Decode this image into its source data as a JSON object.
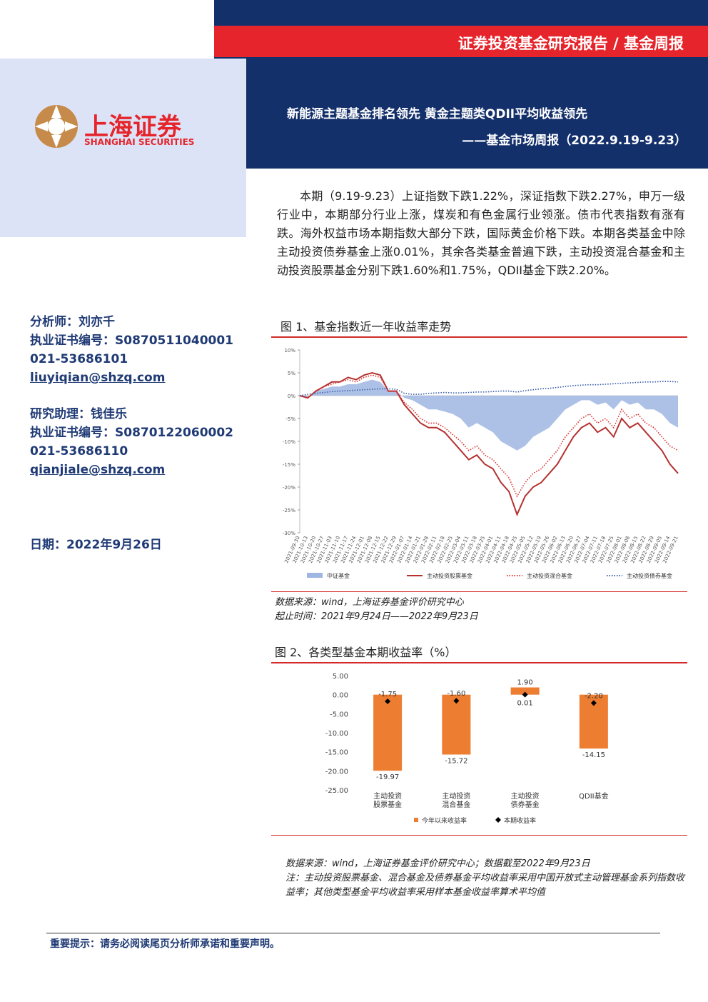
{
  "header": {
    "report_type": "证券投资基金研究报告 / 基金周报",
    "title": "新能源主题基金排名领先 黄金主题类QDII平均收益领先",
    "subtitle": "——基金市场周报（2022.9.19-9.23）"
  },
  "logo": {
    "name": "上海证券",
    "english": "SHANGHAI SECURITIES"
  },
  "analysts": [
    {
      "lines": [
        "分析师：刘亦千",
        "执业证书编号：S0870511040001",
        "021-53686101",
        "liuyiqian@shzq.com"
      ]
    },
    {
      "lines": [
        "研究助理：钱佳乐",
        "执业证书编号：S0870122060002",
        "021-53686110",
        "qianjiale@shzq.com"
      ]
    }
  ],
  "date": "日期：2022年9月26日",
  "body": {
    "paragraph": "本期（9.19-9.23）上证指数下跌1.22%，深证指数下跌2.27%，申万一级行业中，本期部分行业上涨，煤炭和有色金属行业领涨。债市代表指数有涨有跌。海外权益市场本期指数大部分下跌，国际黄金价格下跌。本期各类基金中除主动投资债券基金上涨0.01%，其余各类基金普遍下跌，主动投资混合基金和主动投资股票基金分别下跌1.60%和1.75%，QDII基金下跌2.20%。"
  },
  "chart_data": [
    {
      "type": "line",
      "title": "图 1、基金指数近一年收益率走势",
      "x": [
        "2021-09-30",
        "2021-10-13",
        "2021-10-20",
        "2021-10-27",
        "2021-11-03",
        "2021-11-10",
        "2021-11-17",
        "2021-11-24",
        "2021-12-01",
        "2021-12-08",
        "2021-12-15",
        "2021-12-22",
        "2021-12-29",
        "2022-01-07",
        "2022-01-14",
        "2022-01-21",
        "2022-01-28",
        "2022-02-11",
        "2022-02-18",
        "2022-02-25",
        "2022-03-04",
        "2022-03-11",
        "2022-03-18",
        "2022-03-25",
        "2022-04-01",
        "2022-04-11",
        "2022-04-18",
        "2022-04-25",
        "2022-05-05",
        "2022-05-12",
        "2022-05-19",
        "2022-05-26",
        "2022-06-02",
        "2022-06-13",
        "2022-06-20",
        "2022-06-27",
        "2022-07-04",
        "2022-07-11",
        "2022-07-18",
        "2022-07-25",
        "2022-08-01",
        "2022-08-08",
        "2022-08-15",
        "2022-08-22",
        "2022-08-29",
        "2022-09-05",
        "2022-09-14",
        "2022-09-21"
      ],
      "series": [
        {
          "name": "中证基金",
          "style": "area",
          "color": "#9fb6e2",
          "values": [
            0,
            -0.5,
            1,
            1.5,
            2,
            2,
            2.5,
            2.5,
            3,
            3.5,
            3,
            1,
            1,
            -0.5,
            -1,
            -2,
            -3,
            -3,
            -3.5,
            -4,
            -5,
            -7,
            -6,
            -7,
            -8,
            -10,
            -11,
            -12,
            -11,
            -9,
            -8,
            -7,
            -5,
            -3,
            -2,
            -1,
            -1,
            -2,
            -1.5,
            -3,
            -1,
            -2,
            -1.5,
            -3,
            -3,
            -4,
            -6,
            -7
          ]
        },
        {
          "name": "主动投资股票基金",
          "style": "solid",
          "color": "#b3312f",
          "values": [
            0,
            -0.5,
            1,
            2,
            3,
            3,
            4,
            3.5,
            4.5,
            5,
            4.5,
            1,
            1,
            -2,
            -4,
            -6,
            -7,
            -7,
            -8,
            -10,
            -12,
            -14,
            -13,
            -15,
            -16,
            -19,
            -21,
            -26,
            -22,
            -20,
            -19,
            -17,
            -15,
            -12,
            -9,
            -7,
            -6,
            -8,
            -7,
            -9,
            -5,
            -7,
            -6,
            -8,
            -10,
            -12,
            -15,
            -17
          ]
        },
        {
          "name": "主动投资混合基金",
          "style": "dotted",
          "color": "#d9302f",
          "values": [
            0,
            -0.5,
            1,
            2,
            2.5,
            3,
            3.5,
            3,
            4,
            4.5,
            4,
            1,
            1,
            -1.5,
            -3,
            -5,
            -6,
            -6,
            -7,
            -8.5,
            -10,
            -12,
            -11,
            -13,
            -14,
            -16,
            -18,
            -22,
            -19,
            -17,
            -16,
            -14,
            -12,
            -9,
            -7,
            -5,
            -4,
            -6,
            -5,
            -7,
            -3,
            -5,
            -4,
            -6,
            -7,
            -9,
            -11,
            -12
          ]
        },
        {
          "name": "主动投资债券基金",
          "style": "dotted",
          "color": "#3a5ea8",
          "values": [
            0,
            0.3,
            0.5,
            0.7,
            0.9,
            1,
            1.1,
            1.2,
            1.3,
            1.4,
            1.5,
            1.5,
            1.4,
            0.5,
            0.3,
            0.3,
            0.5,
            0.6,
            0.7,
            0.6,
            0.6,
            0.7,
            0.8,
            0.8,
            0.9,
            1.0,
            1.0,
            0.8,
            1.1,
            1.3,
            1.5,
            1.6,
            1.8,
            2,
            2.2,
            2.3,
            2.4,
            2.4,
            2.5,
            2.6,
            2.7,
            2.8,
            2.9,
            3,
            3,
            3.1,
            3.1,
            3
          ]
        }
      ],
      "ylim": [
        -30,
        10
      ],
      "yticks": [
        {
          "value": -30,
          "label": "-30%"
        },
        {
          "value": -25,
          "label": "-25%"
        },
        {
          "value": -20,
          "label": "-20%"
        },
        {
          "value": -15,
          "label": "-15%"
        },
        {
          "value": -10,
          "label": "-10%"
        },
        {
          "value": -5,
          "label": "-5%"
        },
        {
          "value": 0,
          "label": "0%"
        },
        {
          "value": 5,
          "label": "5%"
        },
        {
          "value": 10,
          "label": "10%"
        }
      ],
      "notes": [
        "数据来源：wind，上海证券基金评价研究中心",
        "起止时间：2021年9月24日——2022年9月23日"
      ]
    },
    {
      "type": "bar",
      "title": "图 2、各类型基金本期收益率（%）",
      "categories": [
        [
          "主动投资",
          "股票基金"
        ],
        [
          "主动投资",
          "混合基金"
        ],
        [
          "主动投资",
          "债券基金"
        ],
        [
          "QDII基金"
        ]
      ],
      "series": [
        {
          "name": "今年以来收益率",
          "type": "bar",
          "color": "#ed7d31",
          "values": [
            -19.97,
            -15.72,
            1.9,
            -14.15
          ],
          "value_labels": [
            "-19.97",
            "-15.72",
            "1.90",
            "-14.15"
          ]
        },
        {
          "name": "本期收益率",
          "type": "scatter",
          "marker": "diamond",
          "color": "#000000",
          "values": [
            -1.75,
            -1.6,
            0.01,
            -2.2
          ],
          "value_labels": [
            "-1.75",
            "-1.60",
            "0.01",
            "-2.20"
          ]
        }
      ],
      "ylim": [
        -25,
        5
      ],
      "yticks": [
        {
          "value": -25,
          "label": "-25.00"
        },
        {
          "value": -20,
          "label": "-20.00"
        },
        {
          "value": -15,
          "label": "-15.00"
        },
        {
          "value": -10,
          "label": "-10.00"
        },
        {
          "value": -5,
          "label": "-5.00"
        },
        {
          "value": 0,
          "label": "0.00"
        },
        {
          "value": 5,
          "label": "5.00"
        }
      ],
      "notes": [
        "数据来源：wind，上海证券基金评价研究中心；数据截至2022年9月23日",
        "注：主动投资股票基金、混合基金及债券基金平均收益率采用中国开放式主动管理基金系列指数收益率；其他类型基金平均收益率采用样本基金收益率算术平均值"
      ]
    }
  ],
  "footer": {
    "notice": "重要提示：请务必阅读尾页分析师承诺和重要声明。"
  }
}
